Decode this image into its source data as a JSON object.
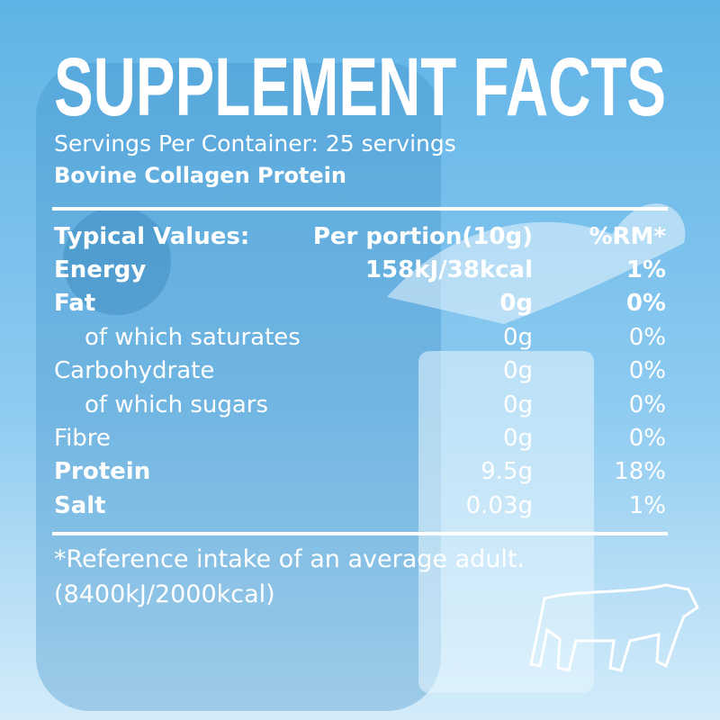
{
  "header": {
    "title": "SUPPLEMENT FACTS",
    "servings": "Servings Per Container: 25 servings",
    "product": "Bovine Collagen Protein"
  },
  "table": {
    "columns": [
      "Typical Values:",
      "Per portion(10g)",
      "%RM*"
    ],
    "rows": [
      [
        "Energy",
        "158kJ/38kcal",
        "1%"
      ],
      [
        "Fat",
        "0g",
        "0%"
      ],
      [
        "of which saturates",
        "0g",
        "0%"
      ],
      [
        "Carbohydrate",
        "0g",
        "0%"
      ],
      [
        "of which sugars",
        "0g",
        "0%"
      ],
      [
        "Fibre",
        "0g",
        "0%"
      ],
      [
        "Protein",
        "9.5g",
        "18%"
      ],
      [
        "Salt",
        "0.03g",
        "1%"
      ]
    ]
  },
  "footnote": [
    "*Reference intake of an average adult.",
    "(8400kJ/2000kcal)"
  ]
}
